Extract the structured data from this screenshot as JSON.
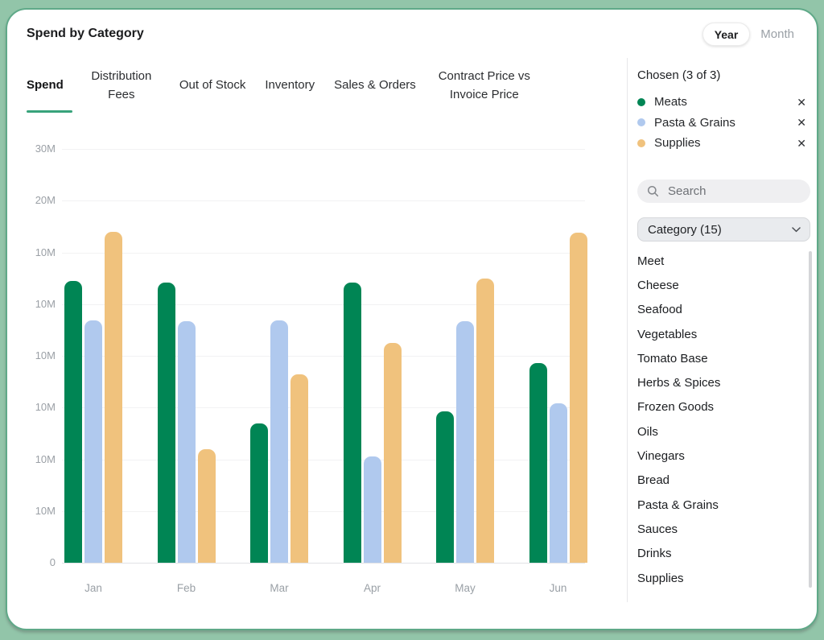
{
  "header": {
    "title": "Spend by Category",
    "period_toggle": {
      "selected": "Year",
      "options": [
        "Year",
        "Month"
      ]
    }
  },
  "tabs": [
    {
      "label": "Spend",
      "active": true
    },
    {
      "label": "Distribution Fees",
      "active": false
    },
    {
      "label": "Out of Stock",
      "active": false
    },
    {
      "label": "Inventory",
      "active": false
    },
    {
      "label": "Sales & Orders",
      "active": false
    },
    {
      "label": "Contract Price vs Invoice Price",
      "active": false
    }
  ],
  "sidebar": {
    "chosen_title": "Chosen (3 of 3)",
    "chosen": [
      {
        "label": "Meats",
        "color": "#008554",
        "remove_label": "✕"
      },
      {
        "label": "Pasta & Grains",
        "color": "#b0c9ee",
        "remove_label": "✕"
      },
      {
        "label": "Supplies",
        "color": "#f0c27d",
        "remove_label": "✕"
      }
    ],
    "search": {
      "placeholder": "Search"
    },
    "category_select": {
      "label": "Category (15)"
    },
    "categories": [
      "Meet",
      "Cheese",
      "Seafood",
      "Vegetables",
      "Tomato Base",
      "Herbs & Spices",
      "Frozen Goods",
      "Oils",
      "Vinegars",
      "Bread",
      "Pasta & Grains",
      "Sauces",
      "Drinks",
      "Supplies"
    ]
  },
  "chart_data": {
    "type": "bar",
    "categories": [
      "Jan",
      "Feb",
      "Mar",
      "Apr",
      "May",
      "Jun"
    ],
    "series": [
      {
        "name": "Meats",
        "color": "#008554",
        "values": [
          5.44,
          5.42,
          2.69,
          5.42,
          2.92,
          3.86
        ]
      },
      {
        "name": "Pasta & Grains",
        "color": "#b0c9ee",
        "values": [
          4.69,
          4.67,
          4.69,
          2.06,
          4.67,
          3.08
        ]
      },
      {
        "name": "Supplies",
        "color": "#f0c27d",
        "values": [
          6.39,
          2.19,
          3.64,
          4.25,
          5.5,
          6.38
        ]
      }
    ],
    "value_unit": "axis gridline intervals (1 interval = one labeled tick step)",
    "y_tick_labels_top_to_bottom": [
      "30M",
      "20M",
      "10M",
      "10M",
      "10M",
      "10M",
      "10M",
      "10M",
      "0"
    ],
    "ylim": [
      0,
      8
    ],
    "grid": true,
    "legend_position": "right-sidebar"
  }
}
